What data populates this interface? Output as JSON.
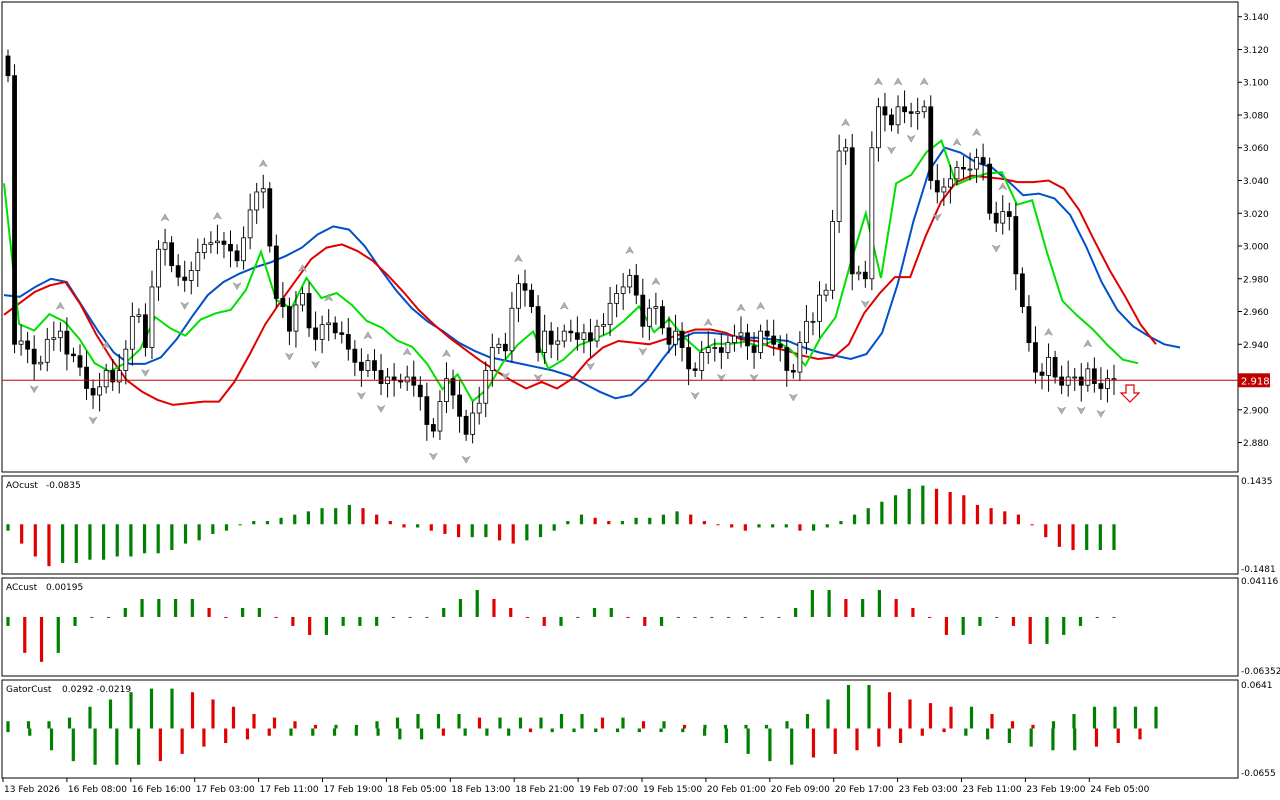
{
  "price_label": "2.918",
  "colors": {
    "frame": "#000000",
    "bull_candle": "#ffffff",
    "bear_candle": "#000000",
    "ma_fast": "#00e000",
    "ma_mid": "#e00000",
    "ma_slow": "#0050c8",
    "hist_up": "#008000",
    "hist_down": "#e00000",
    "price_line": "#c00000",
    "price_tag": "#c00000",
    "fractal": "#b0b0b0"
  },
  "icons": {
    "fractal_marker": "fractal-arrow-icon",
    "sell_signal": "down-arrow-icon"
  },
  "chart_data": [
    {
      "type": "candlestick",
      "y_ticks": [
        "3.140",
        "3.120",
        "3.100",
        "3.080",
        "3.060",
        "3.040",
        "3.020",
        "3.000",
        "2.980",
        "2.960",
        "2.940",
        "2.920",
        "2.900",
        "2.880"
      ],
      "ylim": [
        2.862,
        3.149
      ],
      "current_price": 2.918,
      "x_tick_labels": [
        "13 Feb 2026",
        "16 Feb 08:00",
        "16 Feb 16:00",
        "17 Feb 03:00",
        "17 Feb 11:00",
        "17 Feb 19:00",
        "18 Feb 05:00",
        "18 Feb 13:00",
        "18 Feb 21:00",
        "19 Feb 07:00",
        "19 Feb 15:00",
        "20 Feb 01:00",
        "20 Feb 09:00",
        "20 Feb 17:00",
        "23 Feb 03:00",
        "23 Feb 11:00",
        "23 Feb 19:00",
        "24 Feb 05:00"
      ],
      "close": [
        3.104,
        2.94,
        2.942,
        2.937,
        2.928,
        2.929,
        2.943,
        2.944,
        2.948,
        2.934,
        2.933,
        2.926,
        2.913,
        2.909,
        2.914,
        2.924,
        2.917,
        2.924,
        2.937,
        2.957,
        2.958,
        2.938,
        2.975,
        2.998,
        3.002,
        2.988,
        2.981,
        2.979,
        2.985,
        2.996,
        3.001,
        3.002,
        3.003,
        3.001,
        2.997,
        2.991,
        3.005,
        3.022,
        3.033,
        3.035,
        3.0,
        2.968,
        2.963,
        2.948,
        2.964,
        2.971,
        2.95,
        2.943,
        2.952,
        2.953,
        2.947,
        2.946,
        2.937,
        2.929,
        2.924,
        2.93,
        2.924,
        2.916,
        2.92,
        2.918,
        2.917,
        2.92,
        2.915,
        2.908,
        2.891,
        2.887,
        2.905,
        2.919,
        2.909,
        2.896,
        2.885,
        2.898,
        2.904,
        2.924,
        2.938,
        2.94,
        2.936,
        2.962,
        2.977,
        2.973,
        2.963,
        2.935,
        2.948,
        2.94,
        2.942,
        2.948,
        2.947,
        2.943,
        2.947,
        2.942,
        2.951,
        2.952,
        2.965,
        2.971,
        2.975,
        2.982,
        2.97,
        2.951,
        2.962,
        2.963,
        2.95,
        2.94,
        2.948,
        2.938,
        2.925,
        2.924,
        2.935,
        2.938,
        2.938,
        2.935,
        2.941,
        2.945,
        2.947,
        2.939,
        2.935,
        2.948,
        2.945,
        2.94,
        2.938,
        2.924,
        2.923,
        2.941,
        2.954,
        2.954,
        2.97,
        2.973,
        3.015,
        3.058,
        3.06,
        2.983,
        2.984,
        2.98,
        3.06,
        3.085,
        3.08,
        3.074,
        3.085,
        3.082,
        3.081,
        3.082,
        3.085,
        3.04,
        3.033,
        3.036,
        3.041,
        3.048,
        3.047,
        3.047,
        3.054,
        3.05,
        3.02,
        3.014,
        3.021,
        3.018,
        2.983,
        2.963,
        2.941,
        2.923,
        2.921,
        2.932,
        2.92,
        2.915,
        2.92,
        2.92,
        2.915,
        2.925,
        2.916,
        2.913,
        2.919,
        2.919
      ],
      "series": [
        {
          "name": "",
          "values": [
            2.97,
            2.969,
            2.975,
            2.98,
            2.978,
            2.963,
            2.948,
            2.935,
            2.928,
            2.928,
            2.932,
            2.943,
            2.957,
            2.97,
            2.978,
            2.983,
            2.987,
            2.99,
            2.994,
            2.999,
            3.007,
            3.012,
            3.01,
            3.0,
            2.986,
            2.973,
            2.962,
            2.954,
            2.948,
            2.941,
            2.936,
            2.932,
            2.93,
            2.928,
            2.926,
            2.924,
            2.921,
            2.916,
            2.911,
            2.907,
            2.909,
            2.918,
            2.931,
            2.943,
            2.947,
            2.947,
            2.946,
            2.944,
            2.944,
            2.943,
            2.942,
            2.938,
            2.935,
            2.933,
            2.931,
            2.934,
            2.947,
            2.977,
            3.015,
            3.046,
            3.06,
            3.057,
            3.051,
            3.048,
            3.04,
            3.031,
            3.032,
            3.029,
            3.019,
            3.0,
            2.978,
            2.961,
            2.951,
            2.945,
            2.94,
            2.938
          ]
        },
        {
          "name": "",
          "values": [
            2.958,
            2.965,
            2.972,
            2.976,
            2.978,
            2.964,
            2.946,
            2.931,
            2.918,
            2.911,
            2.906,
            2.903,
            2.904,
            2.905,
            2.905,
            2.917,
            2.934,
            2.952,
            2.966,
            2.979,
            2.992,
            2.999,
            3.001,
            2.997,
            2.991,
            2.982,
            2.972,
            2.961,
            2.952,
            2.944,
            2.937,
            2.93,
            2.924,
            2.918,
            2.913,
            2.917,
            2.913,
            2.919,
            2.93,
            2.938,
            2.942,
            2.941,
            2.94,
            2.943,
            2.946,
            2.949,
            2.949,
            2.947,
            2.943,
            2.942,
            2.938,
            2.936,
            2.933,
            2.931,
            2.932,
            2.94,
            2.959,
            2.971,
            2.981,
            2.981,
            3.006,
            3.027,
            3.039,
            3.043,
            3.042,
            3.041,
            3.039,
            3.039,
            3.04,
            3.035,
            3.022,
            3.003,
            2.985,
            2.969,
            2.952,
            2.94
          ]
        }
      ]
    },
    {
      "type": "bar",
      "name": "AOcust",
      "value_label": "-0.0835",
      "ylim": [
        -0.1481,
        0.1435
      ],
      "values": [
        -0.02,
        -0.06,
        -0.1,
        -0.13,
        -0.12,
        -0.12,
        -0.11,
        -0.11,
        -0.1,
        -0.1,
        -0.09,
        -0.09,
        -0.08,
        -0.06,
        -0.05,
        -0.03,
        -0.02,
        0.0,
        0.01,
        0.01,
        0.02,
        0.03,
        0.04,
        0.05,
        0.05,
        0.06,
        0.05,
        0.03,
        0.01,
        -0.01,
        -0.01,
        -0.02,
        -0.03,
        -0.04,
        -0.04,
        -0.04,
        -0.05,
        -0.06,
        -0.05,
        -0.04,
        -0.02,
        0.01,
        0.03,
        0.02,
        0.01,
        0.01,
        0.02,
        0.02,
        0.03,
        0.04,
        0.03,
        0.01,
        0.0,
        -0.01,
        -0.02,
        -0.01,
        -0.01,
        -0.01,
        -0.02,
        -0.02,
        -0.01,
        0.01,
        0.03,
        0.05,
        0.07,
        0.09,
        0.11,
        0.12,
        0.11,
        0.1,
        0.09,
        0.06,
        0.05,
        0.04,
        0.03,
        0.0,
        -0.04,
        -0.07,
        -0.08,
        -0.08,
        -0.08,
        -0.08
      ]
    },
    {
      "type": "bar",
      "name": "ACcust",
      "value_label": "0.00195",
      "ylim": [
        -0.06352,
        0.04116
      ],
      "values": [
        -0.01,
        -0.04,
        -0.05,
        -0.04,
        -0.01,
        0.0,
        0.0,
        0.01,
        0.02,
        0.02,
        0.02,
        0.02,
        0.01,
        0.0,
        0.01,
        0.01,
        0.0,
        -0.01,
        -0.02,
        -0.02,
        -0.01,
        -0.01,
        -0.01,
        0.0,
        0.0,
        0.0,
        0.01,
        0.02,
        0.03,
        0.02,
        0.01,
        0.0,
        -0.01,
        -0.01,
        0.0,
        0.01,
        0.01,
        0.0,
        -0.01,
        -0.01,
        0.0,
        0.0,
        0.0,
        0.0,
        0.0,
        0.0,
        0.0,
        0.01,
        0.03,
        0.03,
        0.02,
        0.02,
        0.03,
        0.02,
        0.01,
        0.0,
        -0.02,
        -0.02,
        -0.01,
        0.0,
        -0.01,
        -0.03,
        -0.03,
        -0.02,
        -0.01,
        0.0,
        0.0
      ]
    },
    {
      "type": "bar",
      "name": "GatorCust",
      "value_label": "0.0292 -0.0219",
      "ylim": [
        -0.0655,
        0.0641
      ],
      "series": [
        {
          "name": "upper",
          "values": [
            0.01,
            0.01,
            0.01,
            0.015,
            0.03,
            0.04,
            0.05,
            0.055,
            0.055,
            0.05,
            0.04,
            0.03,
            0.02,
            0.015,
            0.01,
            0.005,
            0.005,
            0.005,
            0.01,
            0.015,
            0.02,
            0.02,
            0.02,
            0.015,
            0.015,
            0.015,
            0.015,
            0.02,
            0.02,
            0.015,
            0.015,
            0.01,
            0.01,
            0.005,
            0.005,
            0.005,
            0.005,
            0.005,
            0.01,
            0.02,
            0.04,
            0.06,
            0.06,
            0.05,
            0.04,
            0.035,
            0.03,
            0.03,
            0.02,
            0.01,
            0.005,
            0.01,
            0.02,
            0.03,
            0.03,
            0.03,
            0.03
          ]
        },
        {
          "name": "lower",
          "values": [
            -0.005,
            -0.01,
            -0.03,
            -0.045,
            -0.05,
            -0.05,
            -0.05,
            -0.045,
            -0.035,
            -0.025,
            -0.02,
            -0.015,
            -0.01,
            -0.01,
            -0.01,
            -0.01,
            -0.01,
            -0.01,
            -0.015,
            -0.015,
            -0.01,
            -0.01,
            -0.01,
            -0.01,
            -0.005,
            -0.005,
            -0.005,
            -0.005,
            -0.005,
            -0.005,
            -0.005,
            -0.005,
            -0.01,
            -0.02,
            -0.035,
            -0.045,
            -0.05,
            -0.04,
            -0.035,
            -0.03,
            -0.025,
            -0.02,
            -0.01,
            -0.005,
            -0.01,
            -0.015,
            -0.02,
            -0.025,
            -0.03,
            -0.03,
            -0.025,
            -0.02,
            -0.015
          ]
        }
      ]
    }
  ]
}
